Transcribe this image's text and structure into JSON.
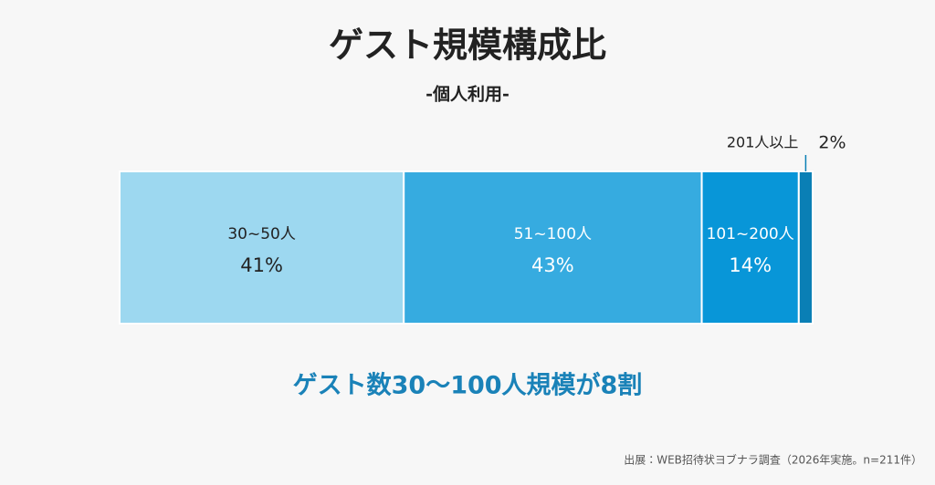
{
  "chart_data": {
    "type": "stacked-bar-100",
    "title": "ゲスト規模構成比",
    "subtitle": "-個人利用-",
    "categories": [
      "30~50人",
      "51~100人",
      "101~200人",
      "201人以上"
    ],
    "values": [
      41,
      43,
      14,
      2
    ],
    "value_labels": [
      "41%",
      "43%",
      "14%",
      "2%"
    ],
    "colors": [
      "#9dd8f0",
      "#36abe0",
      "#0896d8",
      "#0a7fb5"
    ],
    "annotation": "ゲスト数30〜100人規模が8割",
    "source": "出展：WEB招待状ヨブナラ調査（2026年実施。n=211件）"
  }
}
